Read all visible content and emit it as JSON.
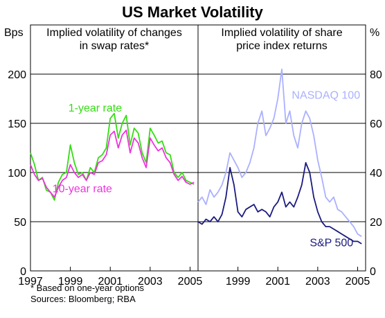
{
  "chart_data": {
    "type": "line",
    "title": "US Market Volatility",
    "left_unit": "Bps",
    "right_unit": "%",
    "panels": [
      {
        "title_lines": [
          "Implied volatility of changes",
          "in swap rates*"
        ],
        "ylim": [
          0,
          250
        ],
        "yticks": [
          0,
          50,
          100,
          150,
          200
        ],
        "xlim": [
          1997.0,
          2005.4
        ],
        "xticks": [
          "1997",
          "1999",
          "2001",
          "2003",
          "2005"
        ],
        "xtick_pos": [
          1997,
          1999,
          2001,
          2003,
          2005
        ],
        "series": [
          {
            "name": "1-year rate",
            "color": "#33dd11",
            "label_pos": [
              1998.9,
              162
            ],
            "x": [
              1997.0,
              1997.2,
              1997.4,
              1997.6,
              1997.8,
              1998.0,
              1998.2,
              1998.4,
              1998.6,
              1998.8,
              1999.0,
              1999.2,
              1999.4,
              1999.6,
              1999.8,
              2000.0,
              2000.2,
              2000.4,
              2000.6,
              2000.8,
              2001.0,
              2001.2,
              2001.4,
              2001.6,
              2001.8,
              2002.0,
              2002.2,
              2002.4,
              2002.6,
              2002.8,
              2003.0,
              2003.2,
              2003.4,
              2003.6,
              2003.8,
              2004.0,
              2004.2,
              2004.4,
              2004.6,
              2004.8,
              2005.0,
              2005.2
            ],
            "y": [
              120,
              108,
              92,
              95,
              82,
              80,
              72,
              90,
              98,
              100,
              128,
              110,
              98,
              100,
              92,
              105,
              100,
              115,
              118,
              125,
              155,
              160,
              135,
              150,
              158,
              128,
              145,
              140,
              120,
              110,
              145,
              138,
              130,
              132,
              120,
              118,
              100,
              95,
              100,
              92,
              90,
              88
            ]
          },
          {
            "name": "10-year rate",
            "color": "#ee33dd",
            "label_pos": [
              1998.1,
              80
            ],
            "x": [
              1997.0,
              1997.2,
              1997.4,
              1997.6,
              1997.8,
              1998.0,
              1998.2,
              1998.4,
              1998.6,
              1998.8,
              1999.0,
              1999.2,
              1999.4,
              1999.6,
              1999.8,
              2000.0,
              2000.2,
              2000.4,
              2000.6,
              2000.8,
              2001.0,
              2001.2,
              2001.4,
              2001.6,
              2001.8,
              2002.0,
              2002.2,
              2002.4,
              2002.6,
              2002.8,
              2003.0,
              2003.2,
              2003.4,
              2003.6,
              2003.8,
              2004.0,
              2004.2,
              2004.4,
              2004.6,
              2004.8,
              2005.0,
              2005.2
            ],
            "y": [
              108,
              98,
              92,
              94,
              85,
              80,
              75,
              85,
              92,
              95,
              108,
              100,
              95,
              98,
              92,
              100,
              98,
              110,
              112,
              118,
              138,
              142,
              125,
              138,
              143,
              120,
              135,
              130,
              115,
              105,
              135,
              128,
              122,
              125,
              115,
              110,
              98,
              92,
              96,
              90,
              88,
              90
            ]
          }
        ]
      },
      {
        "title_lines": [
          "Implied volatility of share",
          "price index returns"
        ],
        "ylim": [
          0,
          100
        ],
        "yticks": [
          0,
          20,
          40,
          60,
          80
        ],
        "xlim": [
          1997.0,
          2005.4
        ],
        "xticks": [
          "1999",
          "2001",
          "2003",
          "2005"
        ],
        "xtick_pos": [
          1999,
          2001,
          2003,
          2005
        ],
        "series": [
          {
            "name": "NASDAQ 100",
            "color": "#aab0ff",
            "label_pos": [
              2001.7,
              70
            ],
            "x": [
              1997.0,
              1997.2,
              1997.4,
              1997.6,
              1997.8,
              1998.0,
              1998.2,
              1998.4,
              1998.6,
              1998.8,
              1999.0,
              1999.2,
              1999.4,
              1999.6,
              1999.8,
              2000.0,
              2000.2,
              2000.4,
              2000.6,
              2000.8,
              2001.0,
              2001.2,
              2001.4,
              2001.6,
              2001.8,
              2002.0,
              2002.2,
              2002.4,
              2002.6,
              2002.8,
              2003.0,
              2003.2,
              2003.4,
              2003.6,
              2003.8,
              2004.0,
              2004.2,
              2004.4,
              2004.6,
              2004.8,
              2005.0,
              2005.2
            ],
            "y": [
              28,
              30,
              27,
              33,
              30,
              32,
              35,
              40,
              48,
              45,
              42,
              38,
              40,
              44,
              50,
              60,
              65,
              55,
              58,
              62,
              70,
              82,
              60,
              65,
              55,
              50,
              60,
              65,
              62,
              55,
              45,
              38,
              30,
              28,
              30,
              25,
              24,
              22,
              20,
              18,
              15,
              14
            ]
          },
          {
            "name": "S&P 500",
            "color": "#1a1a80",
            "label_pos": [
              2002.6,
              10
            ],
            "x": [
              1997.0,
              1997.2,
              1997.4,
              1997.6,
              1997.8,
              1998.0,
              1998.2,
              1998.4,
              1998.6,
              1998.8,
              1999.0,
              1999.2,
              1999.4,
              1999.6,
              1999.8,
              2000.0,
              2000.2,
              2000.4,
              2000.6,
              2000.8,
              2001.0,
              2001.2,
              2001.4,
              2001.6,
              2001.8,
              2002.0,
              2002.2,
              2002.4,
              2002.6,
              2002.8,
              2003.0,
              2003.2,
              2003.4,
              2003.6,
              2003.8,
              2004.0,
              2004.2,
              2004.4,
              2004.6,
              2004.8,
              2005.0,
              2005.2
            ],
            "y": [
              20,
              19,
              21,
              20,
              22,
              20,
              23,
              30,
              42,
              35,
              24,
              22,
              25,
              26,
              27,
              24,
              25,
              24,
              22,
              26,
              28,
              32,
              26,
              28,
              26,
              30,
              35,
              44,
              40,
              30,
              24,
              20,
              18,
              18,
              17,
              16,
              15,
              14,
              13,
              12,
              12,
              11
            ]
          }
        ]
      }
    ],
    "notes": [
      "* Based on one-year options",
      "Sources: Bloomberg; RBA"
    ]
  }
}
